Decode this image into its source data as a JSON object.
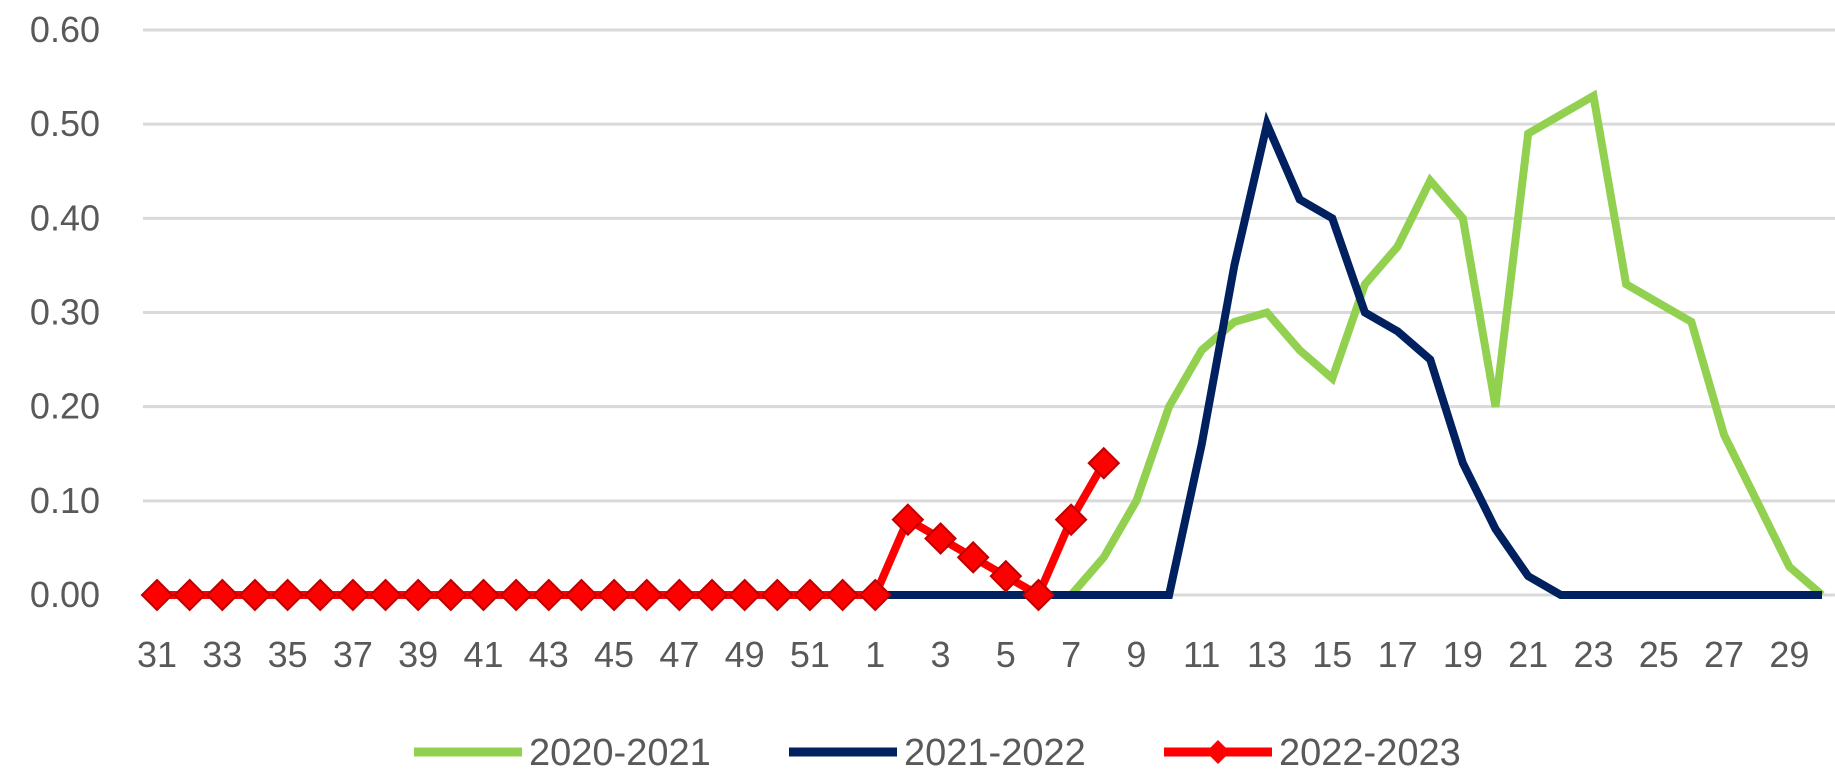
{
  "chart_data": {
    "type": "line",
    "title": "",
    "xlabel": "",
    "ylabel": "",
    "ylim": [
      0,
      0.6
    ],
    "y_ticks": [
      "0.00",
      "0.10",
      "0.20",
      "0.30",
      "0.40",
      "0.50",
      "0.60"
    ],
    "grid": true,
    "legend_position": "bottom",
    "categories": [
      "31",
      "32",
      "33",
      "34",
      "35",
      "36",
      "37",
      "38",
      "39",
      "40",
      "41",
      "42",
      "43",
      "44",
      "45",
      "46",
      "47",
      "48",
      "49",
      "50",
      "51",
      "52",
      "1",
      "2",
      "3",
      "4",
      "5",
      "6",
      "7",
      "8",
      "9",
      "10",
      "11",
      "12",
      "13",
      "14",
      "15",
      "16",
      "17",
      "18",
      "19",
      "20",
      "21",
      "22",
      "23",
      "24",
      "25",
      "26",
      "27",
      "28",
      "29",
      "30"
    ],
    "x_tick_labels": [
      "31",
      "33",
      "35",
      "37",
      "39",
      "41",
      "43",
      "45",
      "47",
      "49",
      "51",
      "1",
      "3",
      "5",
      "7",
      "9",
      "11",
      "13",
      "15",
      "17",
      "19",
      "21",
      "23",
      "25",
      "27",
      "29"
    ],
    "series": [
      {
        "name": "2020-2021",
        "color": "#92d050",
        "marker": "none",
        "values": [
          null,
          null,
          null,
          null,
          null,
          null,
          null,
          null,
          null,
          null,
          null,
          null,
          null,
          null,
          null,
          null,
          null,
          null,
          null,
          null,
          null,
          null,
          null,
          null,
          null,
          null,
          null,
          null,
          0.0,
          0.04,
          0.1,
          0.2,
          0.26,
          0.29,
          0.3,
          0.26,
          0.23,
          0.33,
          0.37,
          0.44,
          0.4,
          0.2,
          0.49,
          0.51,
          0.53,
          0.33,
          0.31,
          0.29,
          0.17,
          0.1,
          0.03,
          0.0
        ]
      },
      {
        "name": "2021-2022",
        "color": "#002060",
        "marker": "none",
        "values": [
          null,
          null,
          null,
          null,
          null,
          null,
          null,
          null,
          null,
          null,
          null,
          null,
          null,
          null,
          null,
          null,
          null,
          null,
          null,
          null,
          null,
          null,
          0.0,
          0.0,
          0.0,
          0.0,
          0.0,
          0.0,
          0.0,
          0.0,
          0.0,
          0.0,
          0.16,
          0.35,
          0.5,
          0.42,
          0.4,
          0.3,
          0.28,
          0.25,
          0.14,
          0.07,
          0.02,
          0.0,
          0.0,
          0.0,
          0.0,
          0.0,
          0.0,
          0.0,
          0.0,
          0.0
        ]
      },
      {
        "name": "2022-2023",
        "color": "#ff0000",
        "marker": "diamond",
        "values": [
          0,
          0,
          0,
          0,
          0,
          0,
          0,
          0,
          0,
          0,
          0,
          0,
          0,
          0,
          0,
          0,
          0,
          0,
          0,
          0,
          0,
          0,
          0,
          0.08,
          0.06,
          0.04,
          0.02,
          0.0,
          0.08,
          0.14,
          null,
          null,
          null,
          null,
          null,
          null,
          null,
          null,
          null,
          null,
          null,
          null,
          null,
          null,
          null,
          null,
          null,
          null,
          null,
          null,
          null,
          null
        ]
      }
    ]
  }
}
